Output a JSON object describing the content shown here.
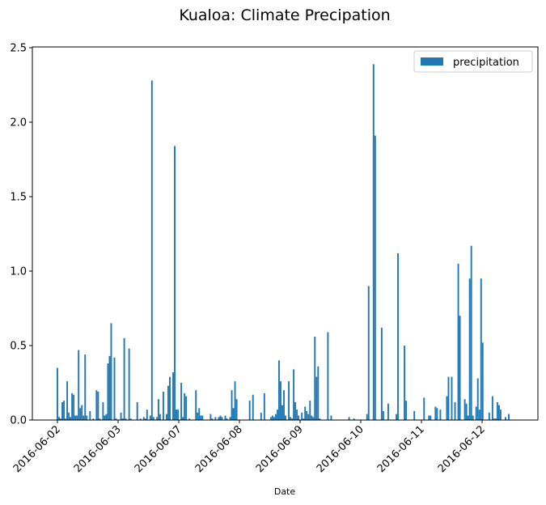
{
  "chart_data": {
    "type": "bar",
    "title": "Kualoa: Climate Precipation",
    "xlabel": "Date",
    "ylabel": "",
    "ylim": [
      0,
      2.5
    ],
    "yticks": [
      "0.0",
      "0.5",
      "1.0",
      "1.5",
      "2.0",
      "2.5"
    ],
    "xticks": [
      "2016-06-02",
      "2016-06-03",
      "2016-06-07",
      "2016-06-08",
      "2016-06-09",
      "2016-06-10",
      "2016-06-11",
      "2016-06-12"
    ],
    "legend": {
      "position": "top-right",
      "entries": [
        "precipitation"
      ]
    },
    "grid": false,
    "series": [
      {
        "name": "precipitation",
        "color": "#1f77b4",
        "values": [
          0.35,
          0.02,
          0.01,
          0.12,
          0.13,
          0.01,
          0.26,
          0.05,
          0.02,
          0.18,
          0.17,
          0.03,
          0.03,
          0.47,
          0.08,
          0.1,
          0.03,
          0.44,
          0.03,
          0.0,
          0.06,
          0.0,
          0.01,
          0.0,
          0.2,
          0.19,
          0.01,
          0.0,
          0.12,
          0.03,
          0.04,
          0.38,
          0.43,
          0.65,
          0.0,
          0.42,
          0.01,
          0.0,
          0.0,
          0.05,
          0.01,
          0.55,
          0.01,
          0.0,
          0.48,
          0.01,
          0.0,
          0.0,
          0.0,
          0.12,
          0.0,
          0.01,
          0.0,
          0.02,
          0.01,
          0.07,
          0.0,
          0.03,
          2.28,
          0.02,
          0.0,
          0.02,
          0.14,
          0.04,
          0.0,
          0.19,
          0.0,
          0.04,
          0.23,
          0.29,
          0.0,
          0.32,
          1.84,
          0.07,
          0.07,
          0.0,
          0.25,
          0.02,
          0.18,
          0.16,
          0.0,
          0.01,
          0.0,
          0.0,
          0.0,
          0.2,
          0.05,
          0.08,
          0.03,
          0.03,
          0.0,
          0.0,
          0.0,
          0.0,
          0.04,
          0.01,
          0.0,
          0.02,
          0.0,
          0.02,
          0.03,
          0.02,
          0.0,
          0.03,
          0.01,
          0.0,
          0.02,
          0.2,
          0.08,
          0.26,
          0.14,
          0.0,
          0.0,
          0.0,
          0.0,
          0.0,
          0.0,
          0.0,
          0.13,
          0.0,
          0.17,
          0.0,
          0.0,
          0.0,
          0.0,
          0.05,
          0.0,
          0.18,
          0.0,
          0.0,
          0.0,
          0.02,
          0.03,
          0.02,
          0.04,
          0.07,
          0.4,
          0.26,
          0.1,
          0.2,
          0.03,
          0.0,
          0.26,
          0.02,
          0.01,
          0.34,
          0.12,
          0.07,
          0.03,
          0.0,
          0.05,
          0.01,
          0.09,
          0.06,
          0.04,
          0.13,
          0.03,
          0.02,
          0.56,
          0.29,
          0.36,
          0.01,
          0.0,
          0.0,
          0.0,
          0.0,
          0.59,
          0.0,
          0.03,
          0.0,
          0.0,
          0.0,
          0.0,
          0.0,
          0.0,
          0.0,
          0.0,
          0.0,
          0.0,
          0.02,
          0.0,
          0.0,
          0.01,
          0.0,
          0.0,
          0.0,
          0.0,
          0.0,
          0.0,
          0.0,
          0.04,
          0.9,
          0.0,
          0.0,
          2.39,
          1.91,
          0.0,
          0.0,
          0.0,
          0.62,
          0.06,
          0.0,
          0.0,
          0.11,
          0.0,
          0.0,
          0.0,
          0.0,
          0.04,
          1.12,
          0.0,
          0.0,
          0.0,
          0.5,
          0.13,
          0.0,
          0.0,
          0.0,
          0.0,
          0.06,
          0.0,
          0.0,
          0.0,
          0.0,
          0.0,
          0.15,
          0.0,
          0.0,
          0.03,
          0.03,
          0.0,
          0.0,
          0.09,
          0.08,
          0.0,
          0.07,
          0.0,
          0.0,
          0.0,
          0.16,
          0.29,
          0.0,
          0.29,
          0.0,
          0.12,
          0.0,
          1.05,
          0.7,
          0.0,
          0.0,
          0.14,
          0.11,
          0.03,
          0.95,
          1.17,
          0.03,
          0.0,
          0.09,
          0.28,
          0.07,
          0.95,
          0.52,
          0.0,
          0.0,
          0.0,
          0.05,
          0.0,
          0.16,
          0.01,
          0.01,
          0.12,
          0.1,
          0.07,
          0.0,
          0.0,
          0.02,
          0.0,
          0.04
        ]
      }
    ]
  }
}
